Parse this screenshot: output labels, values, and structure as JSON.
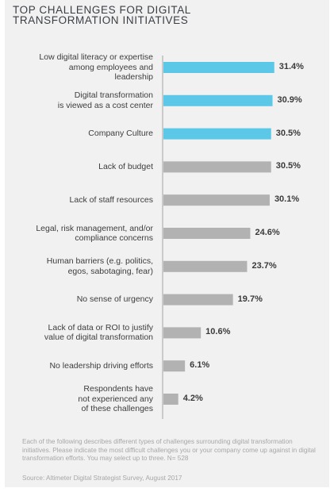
{
  "chart_data": {
    "type": "bar",
    "orientation": "horizontal",
    "title": "TOP CHALLENGES FOR DIGITAL\nTRANSFORMATION INITIATIVES",
    "categories": [
      "Low digital literacy or expertise\namong employees and\nleadership",
      "Digital transformation\nis viewed as a cost center",
      "Company Culture",
      "Lack of budget",
      "Lack of staff resources",
      "Legal, risk management, and/or\ncompliance concerns",
      "Human barriers (e.g. politics,\negos, sabotaging, fear)",
      "No sense of urgency",
      "Lack of data or ROI to justify\nvalue of digital transformation",
      "No leadership driving efforts",
      "Respondents have\nnot experienced any\nof these challenges"
    ],
    "values": [
      31.4,
      30.9,
      30.5,
      30.5,
      30.1,
      24.6,
      23.7,
      19.7,
      10.6,
      6.1,
      4.2
    ],
    "value_labels": [
      "31.4%",
      "30.9%",
      "30.5%",
      "30.5%",
      "30.1%",
      "24.6%",
      "23.7%",
      "19.7%",
      "10.6%",
      "6.1%",
      "4.2%"
    ],
    "highlighted": [
      true,
      true,
      true,
      false,
      false,
      false,
      false,
      false,
      false,
      false,
      false
    ],
    "colors": {
      "highlight": "#5bc8e8",
      "default": "#b2b2b2",
      "axis": "#bdbdbd"
    },
    "grid": false,
    "legend": "none"
  },
  "note": "Each of the following describes different types of challenges surrounding digital transformation initiatives. Please indicate the most difficult challenges you or your company come up against in digital transformation efforts. You may select up to three. N= 528",
  "source": "Source: Altimeter Digital Strategist Survey, August 2017"
}
